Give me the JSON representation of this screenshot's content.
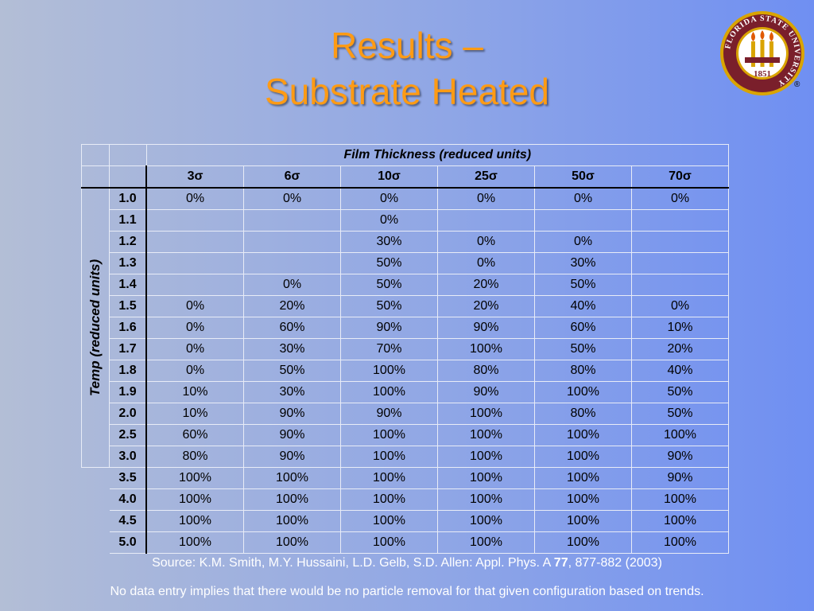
{
  "title": {
    "line1": "Results –",
    "line2": "Substrate Heated"
  },
  "logo": {
    "ring_text": "FLORIDA STATE UNIVERSITY",
    "year": "1851",
    "reg_mark": "®",
    "ring_color": "#7a1f2b",
    "gold": "#d9a400"
  },
  "table": {
    "col_title": "Film Thickness (reduced units)",
    "row_title": "Temp (reduced units)",
    "columns": [
      "3σ",
      "6σ",
      "10σ",
      "25σ",
      "50σ",
      "70σ"
    ],
    "rows": [
      {
        "temp": "1.0",
        "values": [
          "0%",
          "0%",
          "0%",
          "0%",
          "0%",
          "0%"
        ]
      },
      {
        "temp": "1.1",
        "values": [
          "",
          "",
          "0%",
          "",
          "",
          ""
        ]
      },
      {
        "temp": "1.2",
        "values": [
          "",
          "",
          "30%",
          "0%",
          "0%",
          ""
        ]
      },
      {
        "temp": "1.3",
        "values": [
          "",
          "",
          "50%",
          "0%",
          "30%",
          ""
        ]
      },
      {
        "temp": "1.4",
        "values": [
          "",
          "0%",
          "50%",
          "20%",
          "50%",
          ""
        ]
      },
      {
        "temp": "1.5",
        "values": [
          "0%",
          "20%",
          "50%",
          "20%",
          "40%",
          "0%"
        ]
      },
      {
        "temp": "1.6",
        "values": [
          "0%",
          "60%",
          "90%",
          "90%",
          "60%",
          "10%"
        ]
      },
      {
        "temp": "1.7",
        "values": [
          "0%",
          "30%",
          "70%",
          "100%",
          "50%",
          "20%"
        ]
      },
      {
        "temp": "1.8",
        "values": [
          "0%",
          "50%",
          "100%",
          "80%",
          "80%",
          "40%"
        ]
      },
      {
        "temp": "1.9",
        "values": [
          "10%",
          "30%",
          "100%",
          "90%",
          "100%",
          "50%"
        ]
      },
      {
        "temp": "2.0",
        "values": [
          "10%",
          "90%",
          "90%",
          "100%",
          "80%",
          "50%"
        ]
      },
      {
        "temp": "2.5",
        "values": [
          "60%",
          "90%",
          "100%",
          "100%",
          "100%",
          "100%"
        ]
      },
      {
        "temp": "3.0",
        "values": [
          "80%",
          "90%",
          "100%",
          "100%",
          "100%",
          "90%"
        ]
      },
      {
        "temp": "3.5",
        "values": [
          "100%",
          "100%",
          "100%",
          "100%",
          "100%",
          "90%"
        ]
      },
      {
        "temp": "4.0",
        "values": [
          "100%",
          "100%",
          "100%",
          "100%",
          "100%",
          "100%"
        ]
      },
      {
        "temp": "4.5",
        "values": [
          "100%",
          "100%",
          "100%",
          "100%",
          "100%",
          "100%"
        ]
      },
      {
        "temp": "5.0",
        "values": [
          "100%",
          "100%",
          "100%",
          "100%",
          "100%",
          "100%"
        ]
      }
    ]
  },
  "source": {
    "prefix": "Source: K.M. Smith, M.Y. Hussaini, L.D. Gelb, S.D. Allen: Appl. Phys. A ",
    "volume": "77",
    "suffix": ", 877-882 (2003)"
  },
  "note": "No data entry implies that there would be no particle removal for that given configuration based on trends."
}
